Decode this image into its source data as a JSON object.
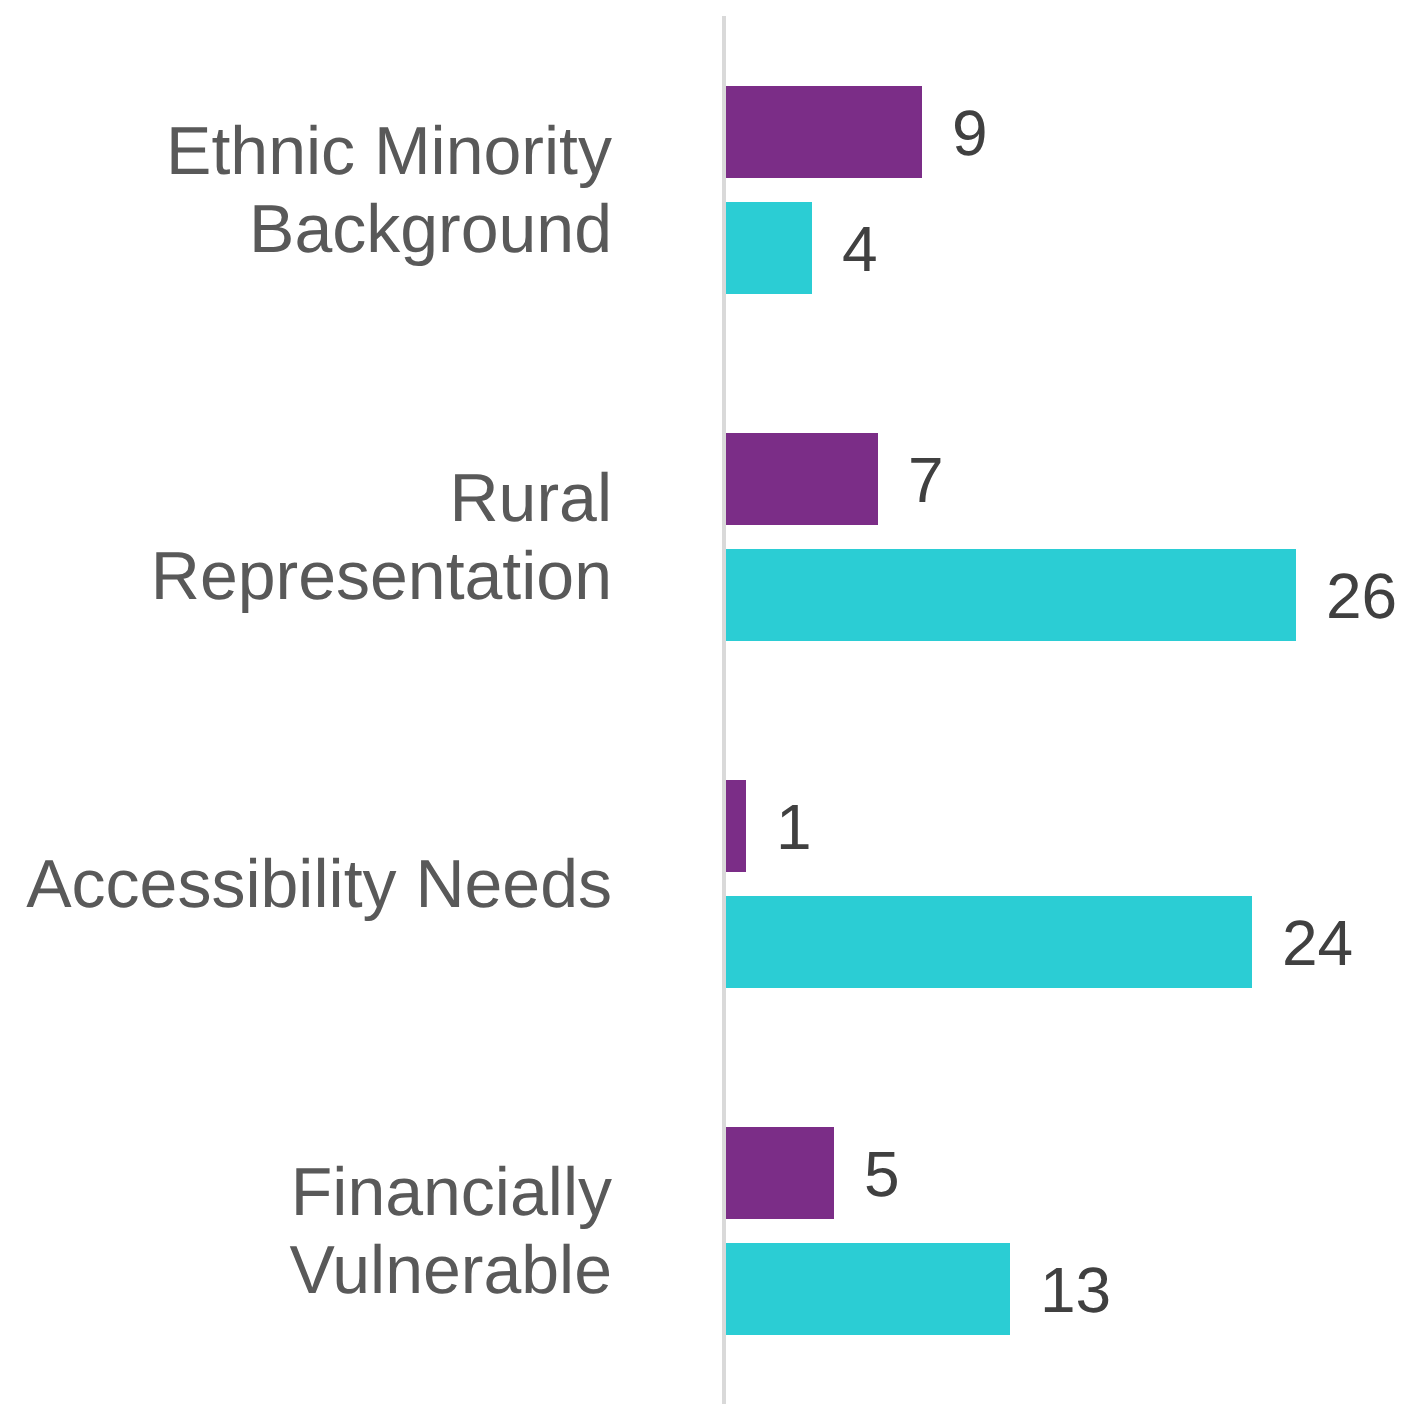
{
  "chart_data": {
    "type": "bar",
    "orientation": "horizontal",
    "categories": [
      "Ethnic Minority Background",
      "Rural Representation",
      "Accessibility Needs",
      "Financially Vulnerable"
    ],
    "series": [
      {
        "color": "#7b2d87",
        "values": [
          9,
          7,
          1,
          5
        ]
      },
      {
        "color": "#2bcdd4",
        "values": [
          4,
          26,
          24,
          13
        ]
      }
    ],
    "data_labels": true
  }
}
